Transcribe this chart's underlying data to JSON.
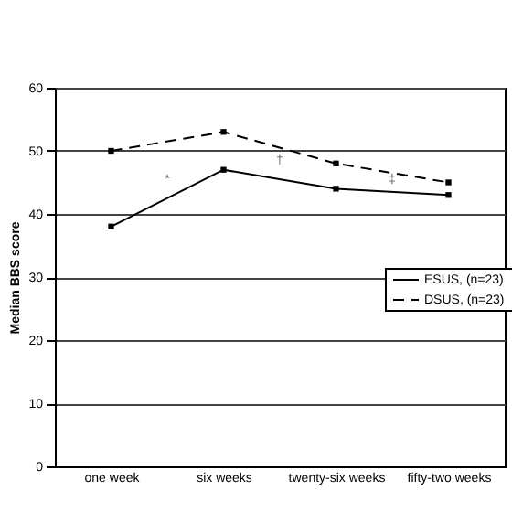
{
  "chart_data": {
    "type": "line",
    "ylabel": "Median BBS score",
    "categories": [
      "one week",
      "six weeks",
      "twenty-six weeks",
      "fifty-two weeks"
    ],
    "series": [
      {
        "name": "ESUS, (n=23)",
        "color": "#000000",
        "values": [
          38,
          47,
          44,
          43
        ],
        "line_style": "solid"
      },
      {
        "name": "DSUS, (n=23)",
        "color": "#000000",
        "values": [
          50,
          53,
          48,
          45
        ],
        "line_style": "dashed"
      }
    ],
    "ylim": [
      0,
      60
    ],
    "yticks": [
      0,
      10,
      20,
      30,
      40,
      50,
      60
    ],
    "grid": "y",
    "legend": "right",
    "marker": "square",
    "annotations": [
      "*",
      "†",
      "‡"
    ]
  }
}
